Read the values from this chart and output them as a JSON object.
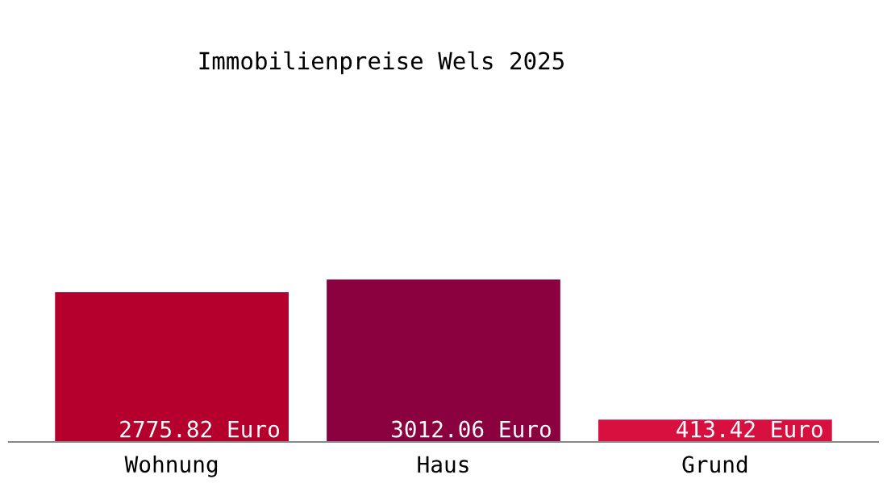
{
  "chart_data": {
    "type": "bar",
    "title": "Immobilienpreise Wels 2025",
    "categories": [
      "Wohnung",
      "Haus",
      "Grund"
    ],
    "values": [
      2775.82,
      3012.06,
      413.42
    ],
    "colors": [
      "#b5002e",
      "#8b003e",
      "#d8103f"
    ],
    "value_labels": [
      "2775.82 Euro",
      "3012.06 Euro",
      "413.42 Euro"
    ],
    "grid": false,
    "legend": false
  }
}
